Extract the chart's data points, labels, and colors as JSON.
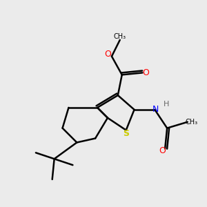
{
  "background_color": "#ebebeb",
  "title": "",
  "atom_colors": {
    "C": "#000000",
    "O": "#ff0000",
    "N": "#0000ff",
    "S": "#cccc00",
    "H": "#808080"
  },
  "bond_color": "#000000",
  "bond_width": 1.8,
  "figure_size": [
    3.0,
    3.0
  ],
  "dpi": 100
}
